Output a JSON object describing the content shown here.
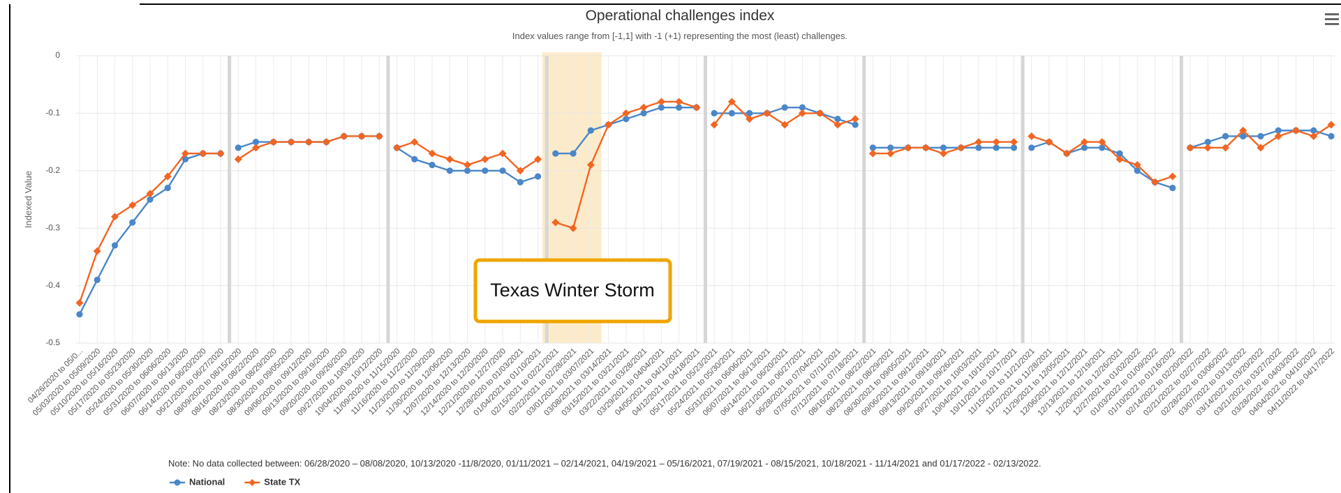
{
  "chart_data": {
    "type": "line",
    "title": "Operational challenges index",
    "subtitle": "Index values range from [-1,1] with -1 (+1) representing the most (least) challenges.",
    "y_label": "Indexed Value",
    "note": "Note: No data collected between: 06/28/2020 – 08/08/2020, 10/13/2020 -11/8/2020, 01/11/2021 – 02/14/2021, 04/19/2021 – 05/16/2021, 07/19/2021 - 08/15/2021, 10/18/2021 - 11/14/2021 and 01/17/2022 - 02/13/2022.",
    "annotation": {
      "label": "Texas Winter Storm",
      "categories": [
        27,
        29
      ]
    },
    "gaps_after": [
      8,
      17,
      26,
      35,
      44,
      53,
      62
    ],
    "ylim": [
      -0.5,
      0
    ],
    "yticks": [
      -0.5,
      -0.4,
      -0.3,
      -0.2,
      -0.1,
      0
    ],
    "grid": true,
    "legend": "bottom-left",
    "categories": [
      "04/26/2020 to 05/0...",
      "05/03/2020 to 05/09/2020",
      "05/10/2020 to 05/16/2020",
      "05/17/2020 to 05/23/2020",
      "05/24/2020 to 05/30/2020",
      "05/31/2020 to 06/06/2020",
      "06/07/2020 to 06/13/2020",
      "06/14/2020 to 06/20/2020",
      "06/21/2020 to 06/27/2020",
      "08/09/2020 to 08/15/2020",
      "08/16/2020 to 08/22/2020",
      "08/23/2020 to 08/29/2020",
      "08/30/2020 to 09/05/2020",
      "09/06/2020 to 09/12/2020",
      "09/13/2020 to 09/19/2020",
      "09/20/2020 to 09/26/2020",
      "09/27/2020 to 10/03/2020",
      "10/04/2020 to 10/12/2020",
      "11/09/2020 to 11/15/2020",
      "11/16/2020 to 11/22/2020",
      "11/23/2020 to 11/29/2020",
      "11/30/2020 to 12/06/2020",
      "12/07/2020 to 12/13/2020",
      "12/14/2020 to 12/20/2020",
      "12/21/2020 to 12/27/2020",
      "12/28/2020 to 01/03/2021",
      "01/04/2021 to 01/10/2021",
      "02/15/2021 to 02/21/2021",
      "02/22/2021 to 02/28/2021",
      "03/01/2021 to 03/07/2021",
      "03/08/2021 to 03/14/2021",
      "03/15/2021 to 03/21/2021",
      "03/22/2021 to 03/28/2021",
      "03/29/2021 to 04/04/2021",
      "04/05/2021 to 04/11/2021",
      "04/12/2021 to 04/18/2021",
      "05/17/2021 to 05/23/2021",
      "05/24/2021 to 05/30/2021",
      "05/31/2021 to 06/06/2021",
      "06/07/2021 to 06/13/2021",
      "06/14/2021 to 06/20/2021",
      "06/21/2021 to 06/27/2021",
      "06/28/2021 to 07/04/2021",
      "07/05/2021 to 07/11/2021",
      "07/12/2021 to 07/18/2021",
      "08/16/2021 to 08/22/2021",
      "08/23/2021 to 08/29/2021",
      "08/30/2021 to 09/05/2021",
      "09/06/2021 to 09/12/2021",
      "09/13/2021 to 09/19/2021",
      "09/20/2021 to 09/26/2021",
      "09/27/2021 to 10/03/2021",
      "10/04/2021 to 10/10/2021",
      "10/11/2021 to 10/17/2021",
      "11/15/2021 to 11/21/2021",
      "11/22/2021 to 11/28/2021",
      "11/29/2021 to 12/05/2021",
      "12/06/2021 to 12/12/2021",
      "12/13/2021 to 12/19/2021",
      "12/20/2021 to 12/26/2021",
      "12/27/2021 to 01/02/2022",
      "01/03/2022 to 01/09/2022",
      "01/10/2022 to 01/16/2022",
      "02/14/2022 to 02/20/2022",
      "02/21/2022 to 02/27/2022",
      "02/28/2022 to 03/06/2022",
      "03/07/2022 to 03/13/2022",
      "03/14/2022 to 03/20/2022",
      "03/21/2022 to 03/27/2022",
      "03/28/2022 to 04/03/2022",
      "04/04/2022 to 04/10/2022",
      "04/11/2022 to 04/17/2022"
    ],
    "series": [
      {
        "name": "National",
        "color": "#4a86c8",
        "marker": "circle",
        "values": [
          -0.45,
          -0.39,
          -0.33,
          -0.29,
          -0.25,
          -0.23,
          -0.18,
          -0.17,
          -0.17,
          -0.16,
          -0.15,
          -0.15,
          -0.15,
          -0.15,
          -0.15,
          -0.14,
          -0.14,
          -0.14,
          -0.16,
          -0.18,
          -0.19,
          -0.2,
          -0.2,
          -0.2,
          -0.2,
          -0.22,
          -0.21,
          -0.17,
          -0.17,
          -0.13,
          -0.12,
          -0.11,
          -0.1,
          -0.09,
          -0.09,
          -0.09,
          -0.1,
          -0.1,
          -0.1,
          -0.1,
          -0.09,
          -0.09,
          -0.1,
          -0.11,
          -0.12,
          -0.16,
          -0.16,
          -0.16,
          -0.16,
          -0.16,
          -0.16,
          -0.16,
          -0.16,
          -0.16,
          -0.16,
          -0.15,
          -0.17,
          -0.16,
          -0.16,
          -0.17,
          -0.2,
          -0.22,
          -0.23,
          -0.16,
          -0.15,
          -0.14,
          -0.14,
          -0.14,
          -0.13,
          -0.13,
          -0.13,
          -0.14
        ]
      },
      {
        "name": "State TX",
        "color": "#f26522",
        "marker": "diamond",
        "values": [
          -0.43,
          -0.34,
          -0.28,
          -0.26,
          -0.24,
          -0.21,
          -0.17,
          -0.17,
          -0.17,
          -0.18,
          -0.16,
          -0.15,
          -0.15,
          -0.15,
          -0.15,
          -0.14,
          -0.14,
          -0.14,
          -0.16,
          -0.15,
          -0.17,
          -0.18,
          -0.19,
          -0.18,
          -0.17,
          -0.2,
          -0.18,
          -0.29,
          -0.3,
          -0.19,
          -0.12,
          -0.1,
          -0.09,
          -0.08,
          -0.08,
          -0.09,
          -0.12,
          -0.08,
          -0.11,
          -0.1,
          -0.12,
          -0.1,
          -0.1,
          -0.12,
          -0.11,
          -0.17,
          -0.17,
          -0.16,
          -0.16,
          -0.17,
          -0.16,
          -0.15,
          -0.15,
          -0.15,
          -0.14,
          -0.15,
          -0.17,
          -0.15,
          -0.15,
          -0.18,
          -0.19,
          -0.22,
          -0.21,
          -0.16,
          -0.16,
          -0.16,
          -0.13,
          -0.16,
          -0.14,
          -0.13,
          -0.14,
          -0.12
        ]
      }
    ]
  }
}
